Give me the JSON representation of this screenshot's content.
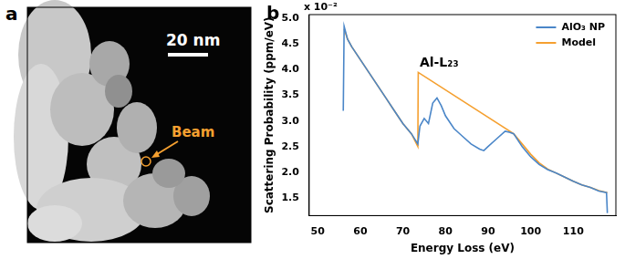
{
  "panel_labels": [
    "a",
    "b"
  ],
  "image_panel": {
    "scale_bar": "20 nm",
    "annotation": "Beam"
  },
  "chart_data": {
    "type": "line",
    "x_label": "Energy Loss (eV)",
    "y_label": "Scattering Probability (ppm/eV)",
    "y_multiplier_label": "x 10⁻²",
    "annotation": "Al-L₂₃",
    "xlim": [
      48,
      120
    ],
    "xticks": [
      50,
      60,
      70,
      80,
      90,
      100,
      110
    ],
    "ylim": [
      1.15,
      5.08
    ],
    "yticks": [
      1.5,
      {
        "value": 2,
        "label": "2.0"
      },
      2.5,
      {
        "value": 3,
        "label": "3.0"
      },
      3.5,
      {
        "value": 4,
        "label": "4.0"
      },
      4.5,
      {
        "value": 5,
        "label": "5.0"
      }
    ],
    "grid": false,
    "legend": "upper right",
    "series": [
      {
        "name": "AlO₃ NP",
        "color": "#4a86c8",
        "x": [
          56,
          56.2,
          57,
          58,
          60,
          62,
          64,
          66,
          68,
          70,
          72,
          73.5,
          74,
          75,
          76,
          77,
          78,
          79,
          80,
          82,
          84,
          86,
          88,
          89,
          90,
          92,
          94,
          95,
          96,
          98,
          100,
          102,
          104,
          106,
          108,
          110,
          112,
          114,
          116,
          117.8,
          118
        ],
        "values": [
          3.2,
          4.85,
          4.6,
          4.45,
          4.2,
          3.95,
          3.7,
          3.45,
          3.2,
          2.95,
          2.75,
          2.55,
          2.9,
          3.05,
          2.95,
          3.35,
          3.45,
          3.3,
          3.1,
          2.85,
          2.7,
          2.55,
          2.45,
          2.42,
          2.5,
          2.65,
          2.8,
          2.78,
          2.75,
          2.5,
          2.3,
          2.15,
          2.05,
          1.98,
          1.9,
          1.82,
          1.75,
          1.7,
          1.63,
          1.6,
          1.2
        ]
      },
      {
        "name": "Model",
        "color": "#f5a030",
        "x": [
          56.2,
          57,
          58,
          60,
          62,
          64,
          66,
          68,
          70,
          72,
          73.5,
          73.6,
          96,
          98,
          100,
          102,
          104,
          106,
          108,
          110,
          112,
          114,
          116,
          118
        ],
        "values": [
          4.8,
          4.6,
          4.45,
          4.2,
          3.95,
          3.7,
          3.45,
          3.2,
          2.95,
          2.75,
          2.5,
          3.95,
          2.75,
          2.55,
          2.35,
          2.18,
          2.06,
          1.98,
          1.9,
          1.82,
          1.75,
          1.7,
          1.64,
          1.6
        ]
      }
    ]
  }
}
